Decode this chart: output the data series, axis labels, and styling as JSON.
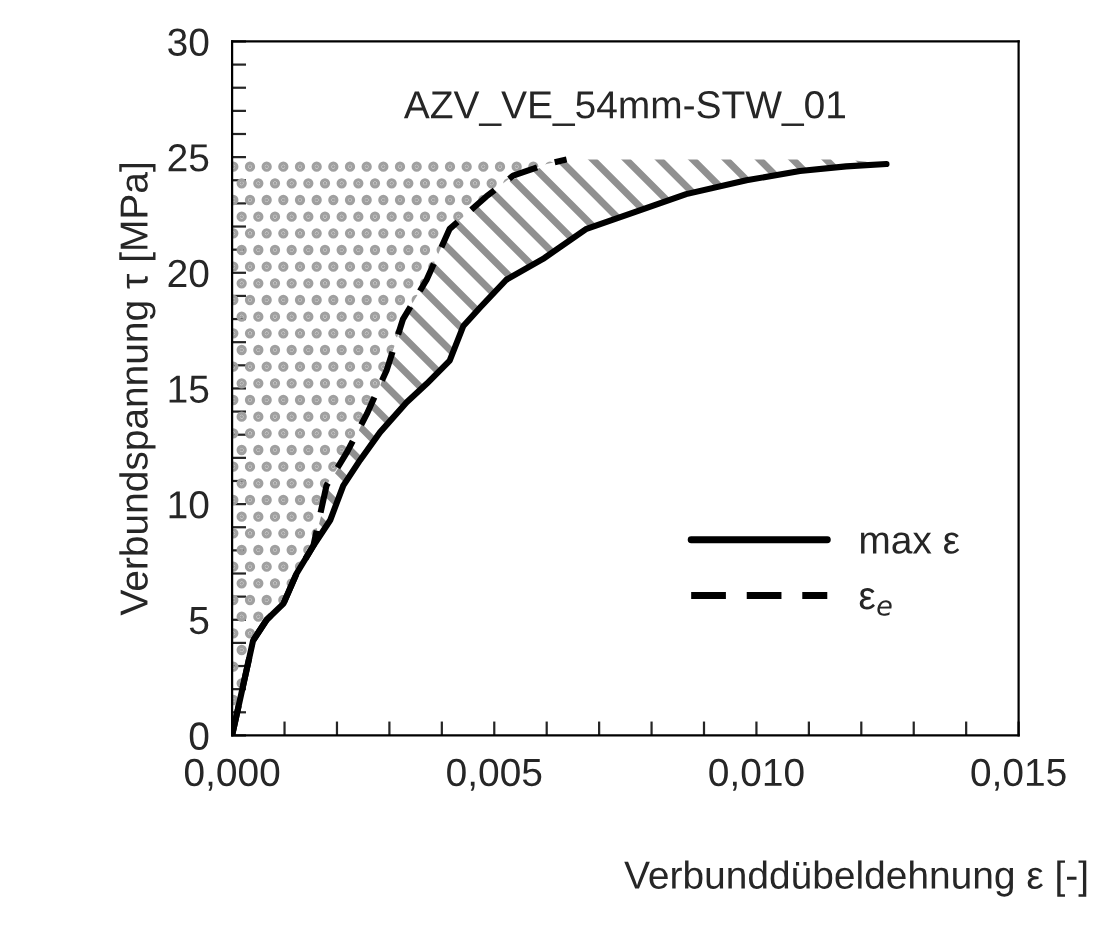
{
  "chart_data": {
    "type": "line",
    "xlabel": "Verbunddübeldehnung ε [-]",
    "ylabel": "Verbundspannung τ [MPa]",
    "annotations": [
      "AZV_VE_54mm-STW_01"
    ],
    "series": [
      {
        "name": "max ε",
        "color": "#000000",
        "line_style": "solid",
        "x": [
          0,
          0.0004,
          0.00066,
          0.00098,
          0.00123,
          0.00155,
          0.00187,
          0.00212,
          0.00244,
          0.00282,
          0.00333,
          0.00371,
          0.00415,
          0.00441,
          0.00473,
          0.00523,
          0.00593,
          0.00676,
          0.00765,
          0.00866,
          0.00981,
          0.01083,
          0.01171,
          0.01248
        ],
        "values": [
          0,
          4.1,
          5.0,
          5.7,
          7.0,
          8.2,
          9.3,
          10.8,
          11.9,
          13.1,
          14.4,
          15.2,
          16.2,
          17.7,
          18.5,
          19.7,
          20.6,
          21.9,
          22.6,
          23.4,
          24.0,
          24.4,
          24.6,
          24.7
        ],
        "lower": [
          0,
          4.1,
          5.0,
          5.7,
          7.0,
          8.2,
          9.3,
          10.8,
          11.9,
          13.1,
          14.4,
          15.2,
          16.2,
          17.7,
          18.5,
          19.7,
          20.6,
          21.9,
          22.6,
          23.4,
          24.0,
          24.4,
          24.6,
          24.7
        ],
        "upper": [
          0,
          4.1,
          5.0,
          5.7,
          7.0,
          8.2,
          11.0,
          11.9,
          13.3,
          15.1,
          18.2,
          19.7,
          21.9,
          22.5,
          23.1,
          23.9,
          24.6,
          24.9,
          24.9,
          24.9,
          24.9,
          24.9,
          24.9,
          24.7
        ]
      },
      {
        "name": "ε$_{e}$",
        "color": "#000000",
        "line_style": "dashed",
        "x": [
          0,
          0.0004,
          0.00066,
          0.00098,
          0.00123,
          0.00155,
          0.0018,
          0.00218,
          0.00257,
          0.00295,
          0.00326,
          0.00371,
          0.00415,
          0.00485,
          0.00536,
          0.006,
          0.00638
        ],
        "values": [
          0,
          4.1,
          5.0,
          5.7,
          7.0,
          8.2,
          10.8,
          12.2,
          13.9,
          15.8,
          18.0,
          19.7,
          21.9,
          23.3,
          24.2,
          24.7,
          24.9
        ],
        "lower": [
          0,
          4.1,
          5.0,
          5.7,
          7.0,
          8.2,
          10.8,
          12.2,
          13.9,
          15.8,
          18.0,
          19.7,
          21.9,
          23.3,
          24.2,
          24.7,
          24.9
        ],
        "upper": [
          24.9,
          24.9,
          24.9,
          24.9,
          24.9,
          24.9,
          24.9,
          24.9,
          24.9,
          24.9,
          24.9,
          24.9,
          24.9,
          24.9,
          24.9,
          24.9,
          24.9
        ]
      }
    ],
    "xlim": [
      0,
      0.015
    ],
    "xticks": [
      {
        "value": 0,
        "label": "0,000"
      },
      {
        "value": 0.001,
        "label": null
      },
      {
        "value": 0.002,
        "label": null
      },
      {
        "value": 0.003,
        "label": null
      },
      {
        "value": 0.004,
        "label": null
      },
      {
        "value": 0.005,
        "label": "0,005"
      },
      {
        "value": 0.006,
        "label": null
      },
      {
        "value": 0.007,
        "label": null
      },
      {
        "value": 0.008,
        "label": null
      },
      {
        "value": 0.009,
        "label": null
      },
      {
        "value": 0.01,
        "label": "0,010"
      },
      {
        "value": 0.011,
        "label": null
      },
      {
        "value": 0.012,
        "label": null
      },
      {
        "value": 0.013,
        "label": null
      },
      {
        "value": 0.014,
        "label": null
      },
      {
        "value": 0.015,
        "label": "0,015"
      }
    ],
    "ylim": [
      0,
      30
    ],
    "yticks": [
      0,
      {
        "value": 1,
        "label": null
      },
      {
        "value": 2,
        "label": null
      },
      {
        "value": 3,
        "label": null
      },
      {
        "value": 4,
        "label": null
      },
      5,
      {
        "value": 6,
        "label": null
      },
      {
        "value": 7,
        "label": null
      },
      {
        "value": 8,
        "label": null
      },
      {
        "value": 9,
        "label": null
      },
      10,
      {
        "value": 11,
        "label": null
      },
      {
        "value": 12,
        "label": null
      },
      {
        "value": 13,
        "label": null
      },
      {
        "value": 14,
        "label": null
      },
      15,
      {
        "value": 16,
        "label": null
      },
      {
        "value": 17,
        "label": null
      },
      {
        "value": 18,
        "label": null
      },
      {
        "value": 19,
        "label": null
      },
      20,
      {
        "value": 21,
        "label": null
      },
      {
        "value": 22,
        "label": null
      },
      {
        "value": 23,
        "label": null
      },
      {
        "value": 24,
        "label": null
      },
      25,
      {
        "value": 26,
        "label": null
      },
      {
        "value": 27,
        "label": null
      },
      {
        "value": 28,
        "label": null
      },
      {
        "value": 29,
        "label": null
      },
      30
    ],
    "grid": false,
    "legend": "bottom right",
    "marker": "none"
  }
}
